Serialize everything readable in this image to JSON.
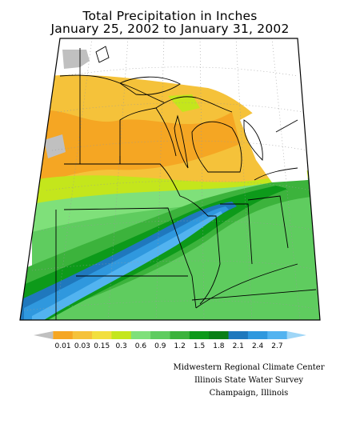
{
  "title": {
    "line1": "Total Precipitation in Inches",
    "line2": "January 25, 2002 to January 31, 2002"
  },
  "legend": {
    "labels": [
      "0.01",
      "0.03",
      "0.15",
      "0.3",
      "0.6",
      "0.9",
      "1.2",
      "1.5",
      "1.8",
      "2.1",
      "2.4",
      "2.7"
    ],
    "colors": [
      "#c0c0c0",
      "#f5a623",
      "#f5c23a",
      "#f2df3e",
      "#c4e61c",
      "#7fe07a",
      "#5fcc5f",
      "#3cb33c",
      "#0d9a1a",
      "#0a7f17",
      "#1f78bd",
      "#2f98de",
      "#52b3f0",
      "#9fd6f7"
    ]
  },
  "map": {
    "colors": {
      "background": "#ffffff",
      "gray": "#c0c0c0",
      "orange": "#f5a623",
      "light_orange": "#f5c23a",
      "yellow": "#f2df3e",
      "yellow_green": "#c4e61c",
      "light_green": "#7fe07a",
      "green": "#5fcc5f",
      "mid_green": "#3cb33c",
      "dark_green": "#0d9a1a",
      "darker_green": "#0a7f17",
      "dark_blue": "#1f78bd",
      "blue": "#2f98de",
      "light_blue": "#52b3f0"
    }
  },
  "credits": {
    "line1": "Midwestern Regional Climate Center",
    "line2": "Illinois State Water Survey",
    "line3": "Champaign, Illinois"
  }
}
